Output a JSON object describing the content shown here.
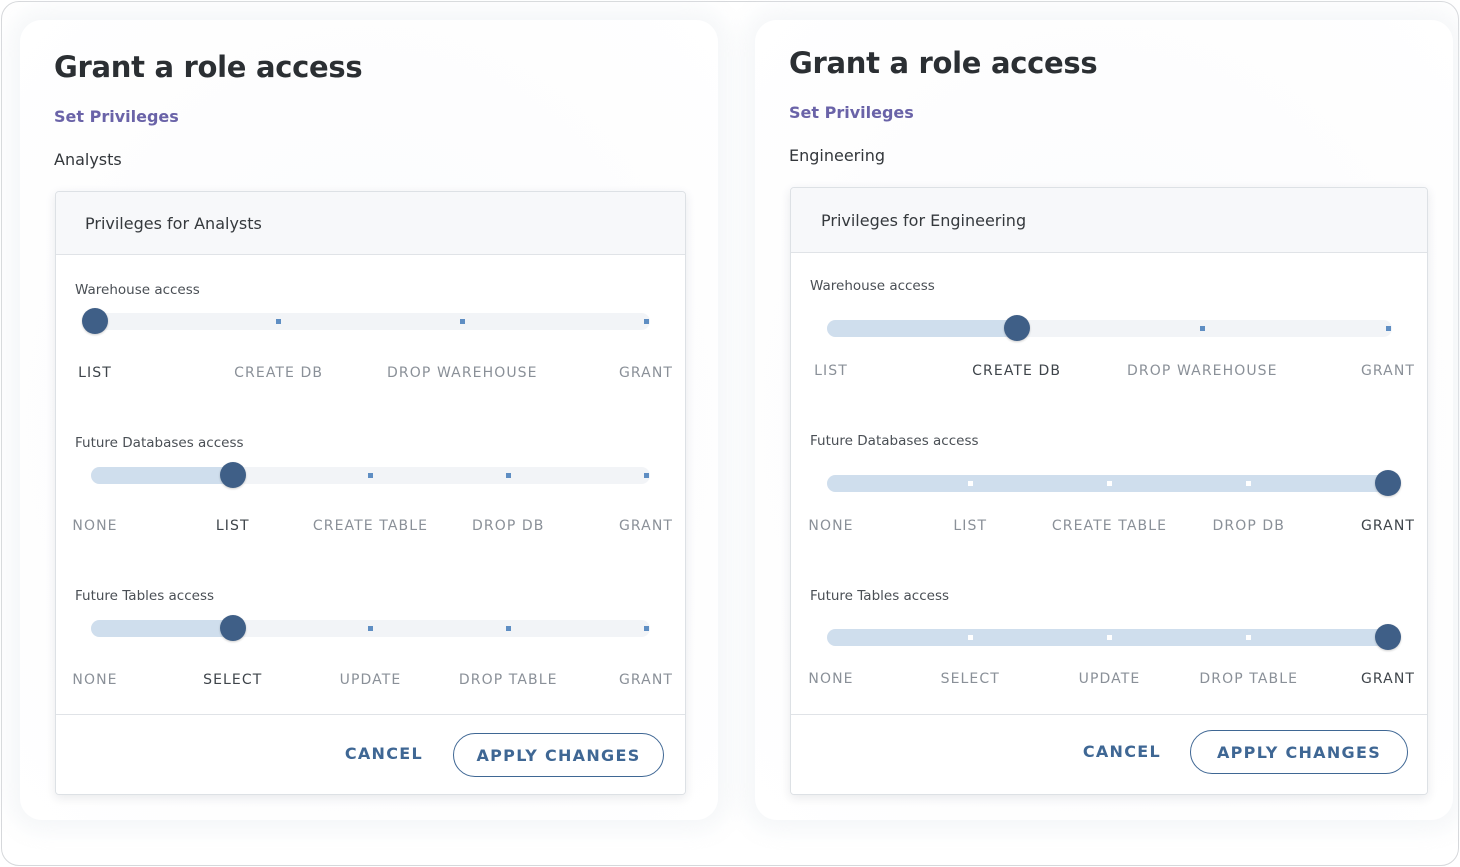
{
  "panels": [
    {
      "title": "Grant a role access",
      "subtitle": "Set Privileges",
      "role": "Analysts",
      "card_header": "Privileges for Analysts",
      "sliders": [
        {
          "label": "Warehouse access",
          "options": [
            "LIST",
            "CREATE DB",
            "DROP WAREHOUSE",
            "GRANT"
          ],
          "selected_index": 0
        },
        {
          "label": "Future Databases access",
          "options": [
            "NONE",
            "LIST",
            "CREATE TABLE",
            "DROP DB",
            "GRANT"
          ],
          "selected_index": 1
        },
        {
          "label": "Future Tables access",
          "options": [
            "NONE",
            "SELECT",
            "UPDATE",
            "DROP TABLE",
            "GRANT"
          ],
          "selected_index": 1
        }
      ],
      "cancel_label": "CANCEL",
      "apply_label": "APPLY CHANGES"
    },
    {
      "title": "Grant a role access",
      "subtitle": "Set Privileges",
      "role": "Engineering",
      "card_header": "Privileges for Engineering",
      "sliders": [
        {
          "label": "Warehouse access",
          "options": [
            "LIST",
            "CREATE DB",
            "DROP WAREHOUSE",
            "GRANT"
          ],
          "selected_index": 1
        },
        {
          "label": "Future Databases access",
          "options": [
            "NONE",
            "LIST",
            "CREATE TABLE",
            "DROP DB",
            "GRANT"
          ],
          "selected_index": 4
        },
        {
          "label": "Future Tables access",
          "options": [
            "NONE",
            "SELECT",
            "UPDATE",
            "DROP TABLE",
            "GRANT"
          ],
          "selected_index": 4
        }
      ],
      "cancel_label": "CANCEL",
      "apply_label": "APPLY CHANGES"
    }
  ],
  "colors": {
    "accent": "#3f6794",
    "thumb": "#3f5f87",
    "track_fill": "#cfdeed",
    "track": "#f2f4f7",
    "subtitle": "#6a63a8"
  }
}
